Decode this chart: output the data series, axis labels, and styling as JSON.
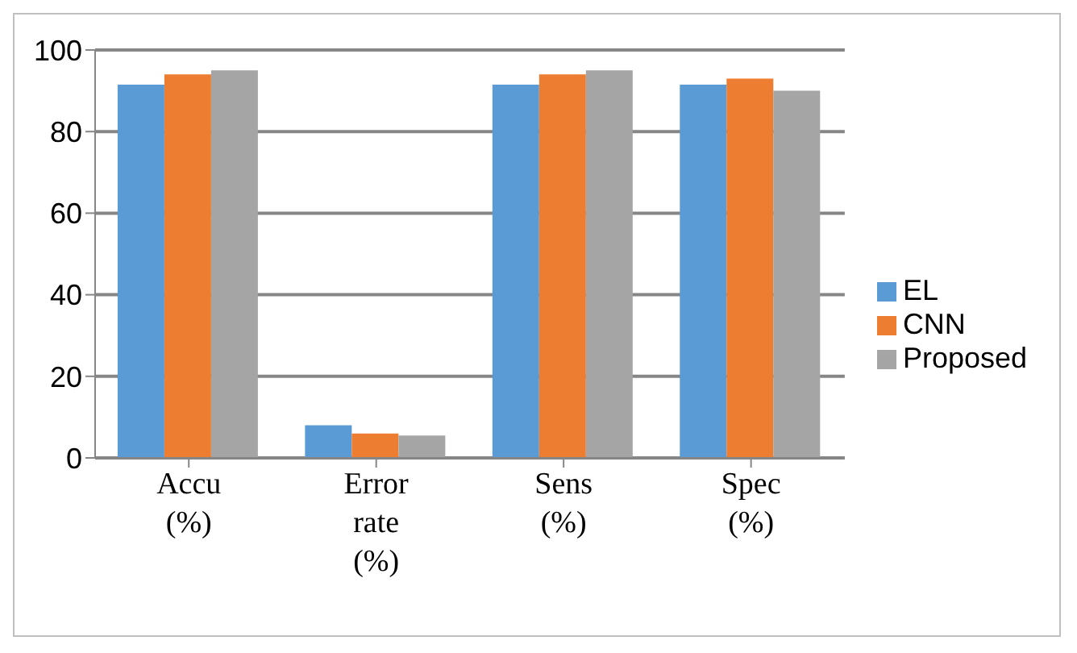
{
  "chart_data": {
    "type": "bar",
    "categories": [
      "Accu (%)",
      "Error rate (%)",
      "Sens (%)",
      "Spec (%)"
    ],
    "series": [
      {
        "name": "EL",
        "color": "#5b9bd5",
        "values": [
          91.5,
          8,
          91.5,
          91.5
        ]
      },
      {
        "name": "CNN",
        "color": "#ed7d31",
        "values": [
          94,
          6,
          94,
          93
        ]
      },
      {
        "name": "Proposed",
        "color": "#a5a5a5",
        "values": [
          95,
          5.5,
          95,
          90
        ]
      }
    ],
    "ylim": [
      0,
      100
    ],
    "yticks": [
      0,
      20,
      40,
      60,
      80,
      100
    ],
    "grid": "y",
    "legend": "right"
  }
}
